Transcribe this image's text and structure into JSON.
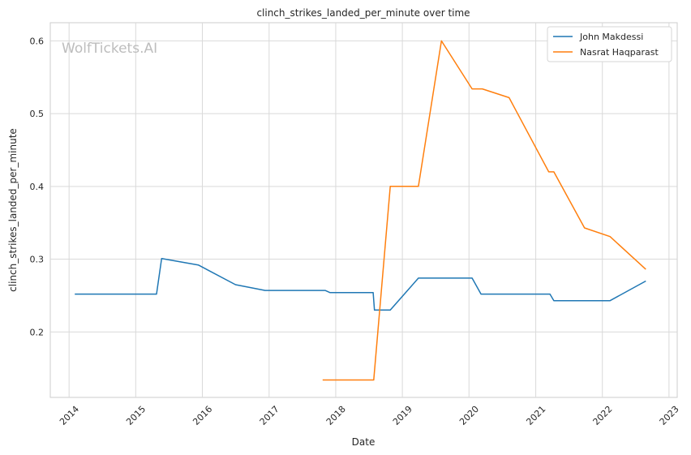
{
  "chart_data": {
    "type": "line",
    "title": "clinch_strikes_landed_per_minute over time",
    "xlabel": "Date",
    "ylabel": "clinch_strikes_landed_per_minute",
    "watermark": "WolfTickets.AI",
    "x_ticks": [
      "2014",
      "2015",
      "2016",
      "2017",
      "2018",
      "2019",
      "2020",
      "2021",
      "2022",
      "2023"
    ],
    "y_ticks": [
      "0.2",
      "0.3",
      "0.4",
      "0.5",
      "0.6"
    ],
    "xlim": [
      "2013-09-20",
      "2023-02-15"
    ],
    "ylim": [
      0.11,
      0.625
    ],
    "grid": true,
    "legend_position": "top-right",
    "series": [
      {
        "name": "John Makdessi",
        "color": "#1f77b4",
        "points": [
          [
            "2014-02-01",
            0.252
          ],
          [
            "2015-04-25",
            0.252
          ],
          [
            "2015-05-23",
            0.301
          ],
          [
            "2015-12-10",
            0.292
          ],
          [
            "2016-07-01",
            0.265
          ],
          [
            "2016-12-10",
            0.257
          ],
          [
            "2017-11-04",
            0.257
          ],
          [
            "2017-12-01",
            0.254
          ],
          [
            "2018-07-25",
            0.254
          ],
          [
            "2018-08-01",
            0.23
          ],
          [
            "2018-10-27",
            0.23
          ],
          [
            "2019-03-30",
            0.274
          ],
          [
            "2020-01-18",
            0.274
          ],
          [
            "2020-03-07",
            0.252
          ],
          [
            "2021-03-20",
            0.252
          ],
          [
            "2021-04-10",
            0.243
          ],
          [
            "2022-02-12",
            0.243
          ],
          [
            "2022-08-27",
            0.27
          ]
        ]
      },
      {
        "name": "Nasrat Haqparast",
        "color": "#ff7f0e",
        "points": [
          [
            "2017-10-21",
            0.134
          ],
          [
            "2018-07-28",
            0.134
          ],
          [
            "2018-10-27",
            0.4
          ],
          [
            "2019-03-30",
            0.4
          ],
          [
            "2019-08-03",
            0.6
          ],
          [
            "2020-01-18",
            0.534
          ],
          [
            "2020-03-14",
            0.534
          ],
          [
            "2020-08-08",
            0.522
          ],
          [
            "2021-03-13",
            0.42
          ],
          [
            "2021-04-10",
            0.42
          ],
          [
            "2021-09-25",
            0.343
          ],
          [
            "2022-02-12",
            0.331
          ],
          [
            "2022-08-27",
            0.286
          ]
        ]
      }
    ]
  }
}
